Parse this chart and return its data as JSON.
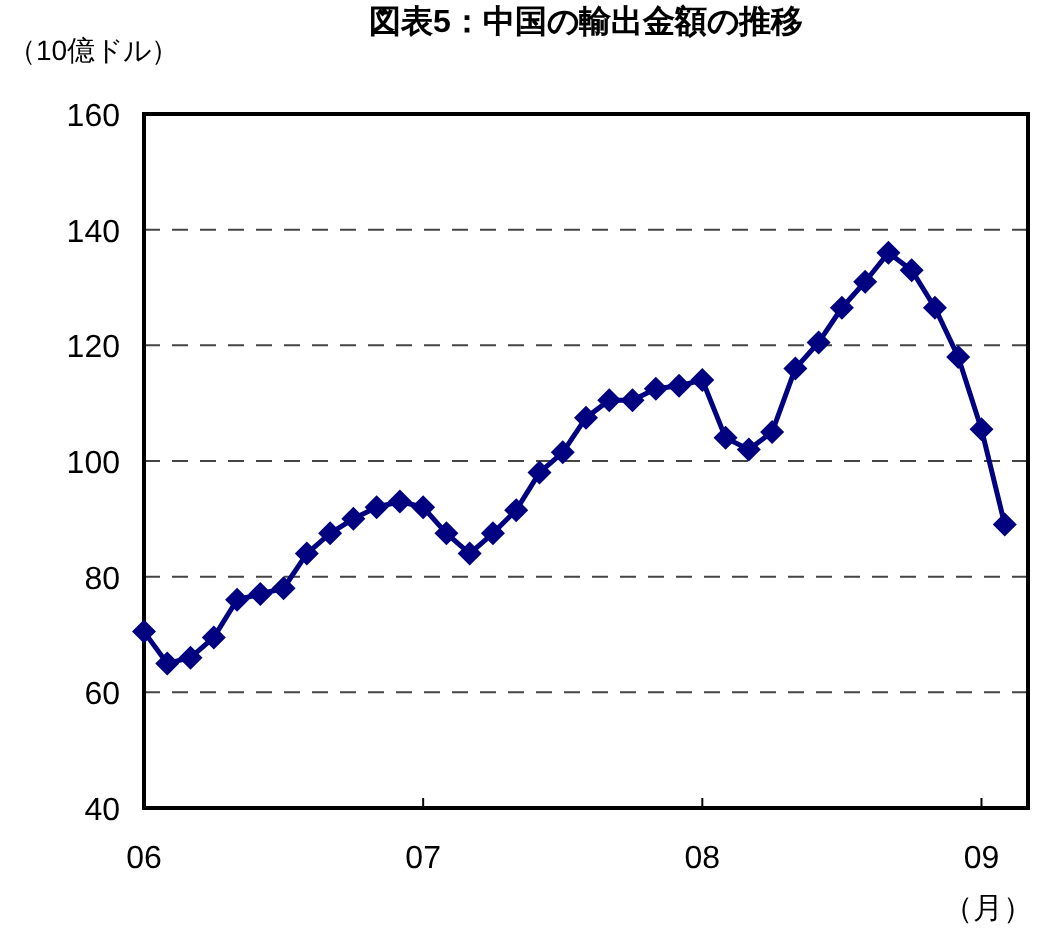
{
  "chart_data": {
    "type": "line",
    "title": "図表5：中国の輸出金額の推移",
    "ylabel": "（10億ドル）",
    "xlabel": "（月）",
    "x": [
      "2006-01",
      "2006-02",
      "2006-03",
      "2006-04",
      "2006-05",
      "2006-06",
      "2006-07",
      "2006-08",
      "2006-09",
      "2006-10",
      "2006-11",
      "2006-12",
      "2007-01",
      "2007-02",
      "2007-03",
      "2007-04",
      "2007-05",
      "2007-06",
      "2007-07",
      "2007-08",
      "2007-09",
      "2007-10",
      "2007-11",
      "2007-12",
      "2008-01",
      "2008-02",
      "2008-03",
      "2008-04",
      "2008-05",
      "2008-06",
      "2008-07",
      "2008-08",
      "2008-09",
      "2008-10",
      "2008-11",
      "2008-12",
      "2009-01",
      "2009-02"
    ],
    "series": [
      {
        "color": "#000080",
        "values": [
          70.5,
          65,
          66,
          69.5,
          76,
          77,
          78,
          84,
          87.5,
          90,
          92,
          93,
          92,
          87.5,
          84,
          87.5,
          91.5,
          98,
          101.5,
          107.5,
          110.5,
          110.5,
          112.5,
          113,
          114,
          104,
          102,
          105,
          116,
          120.5,
          126.5,
          131,
          136,
          133,
          126.5,
          118,
          105.5,
          89
        ]
      }
    ],
    "xlim": [
      "2006-01",
      "2009-03"
    ],
    "xticks": [
      {
        "value": "2006-01",
        "label": "06"
      },
      {
        "value": "2007-01",
        "label": "07"
      },
      {
        "value": "2008-01",
        "label": "08"
      },
      {
        "value": "2009-01",
        "label": "09"
      }
    ],
    "ylim": [
      40,
      160
    ],
    "yticks": [
      40,
      60,
      80,
      100,
      120,
      140,
      160
    ],
    "grid": "y",
    "marker": "diamond",
    "line_style": "solid"
  }
}
